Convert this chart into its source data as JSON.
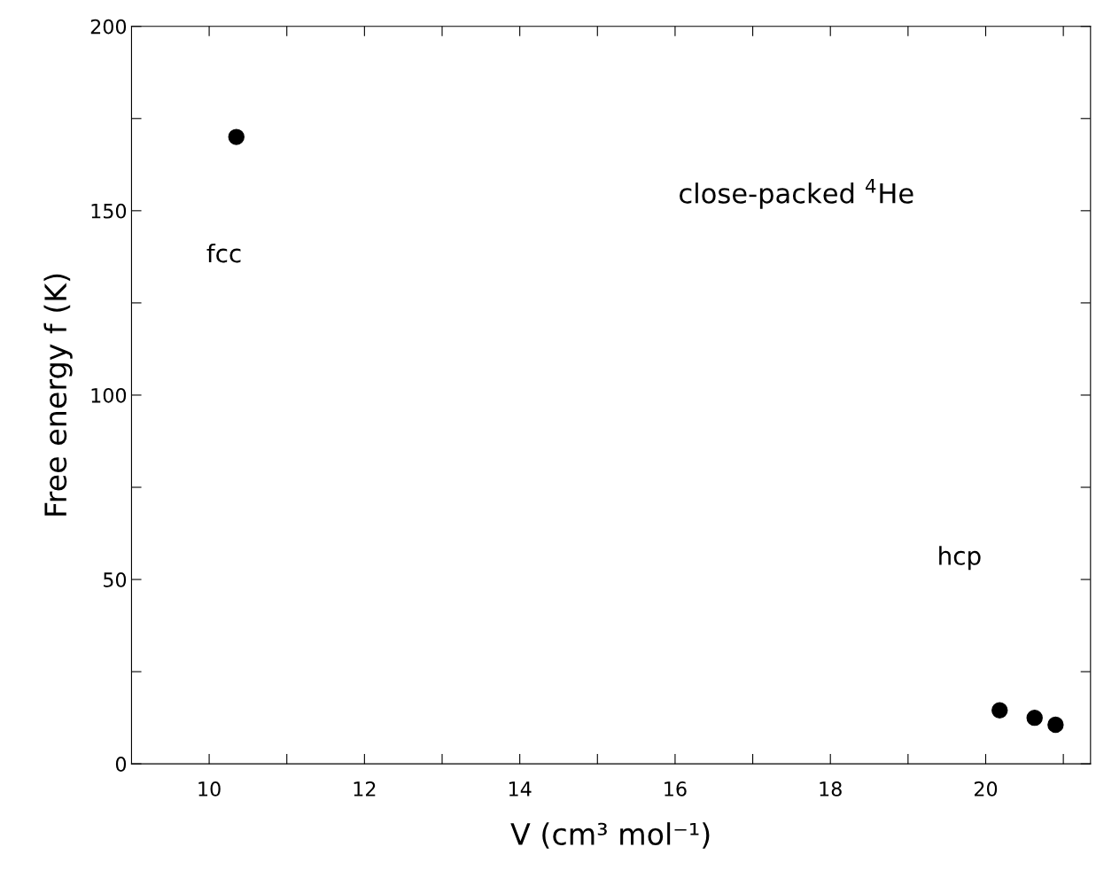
{
  "chart_data": {
    "type": "scatter",
    "xlabel": "V (cm³ mol⁻¹)",
    "ylabel": "Free energy f (K)",
    "x": [
      10.35,
      20.18,
      20.63,
      20.9
    ],
    "series": [
      {
        "color": "#000000",
        "values": [
          170,
          14.5,
          12.5,
          10.6
        ]
      }
    ],
    "marker": "circle",
    "xlim": [
      9,
      21.35
    ],
    "ylim": [
      0,
      200
    ],
    "xticks": [
      10,
      {
        "value": 11,
        "label": null
      },
      12,
      {
        "value": 13,
        "label": null
      },
      14,
      {
        "value": 15,
        "label": null
      },
      16,
      {
        "value": 17,
        "label": null
      },
      18,
      {
        "value": 19,
        "label": null
      },
      20,
      {
        "value": 21,
        "label": null
      }
    ],
    "yticks": [
      0,
      {
        "value": 25,
        "label": null
      },
      50,
      {
        "value": 75,
        "label": null
      },
      100,
      {
        "value": 125,
        "label": null
      },
      150,
      {
        "value": 175,
        "label": null
      },
      200
    ],
    "annotations": [
      "fcc",
      "hcp",
      "close-packed $^{4}$He"
    ],
    "grid": false,
    "legend": false
  }
}
